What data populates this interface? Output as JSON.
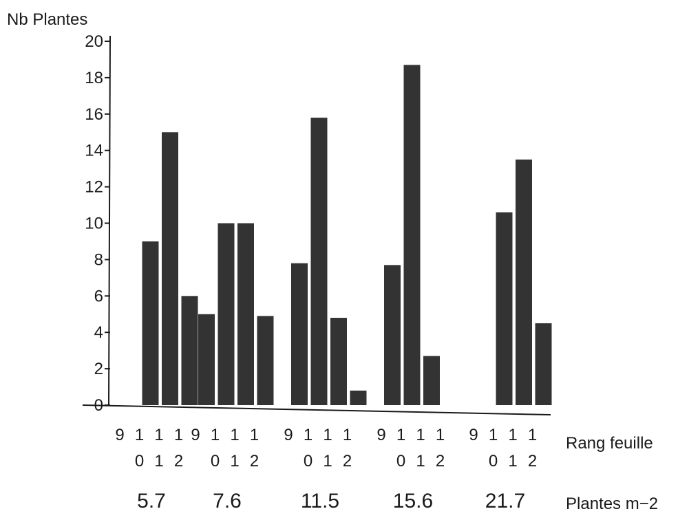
{
  "chart_data": {
    "type": "bar",
    "ylabel": "Nb Plantes",
    "ylim": [
      0,
      20
    ],
    "yticks": [
      0,
      2,
      4,
      6,
      8,
      10,
      12,
      14,
      16,
      18,
      20
    ],
    "x_category_title": "Rang feuille",
    "x_group_title": "Plantes m−2",
    "bar_color": "#333333",
    "categories": [
      "9",
      "10",
      "11",
      "12"
    ],
    "category_tick_lines": [
      [
        "9",
        ""
      ],
      [
        "1",
        "0"
      ],
      [
        "1",
        "1"
      ],
      [
        "1",
        "2"
      ]
    ],
    "groups": [
      {
        "label": "5.7",
        "values": [
          0,
          9,
          15,
          6
        ]
      },
      {
        "label": "7.6",
        "values": [
          5,
          10,
          10,
          4.9
        ]
      },
      {
        "label": "11.5",
        "values": [
          7.8,
          15.8,
          4.8,
          0.8
        ]
      },
      {
        "label": "15.6",
        "values": [
          7.7,
          18.7,
          2.7,
          0
        ]
      },
      {
        "label": "21.7",
        "values": [
          0,
          10.6,
          13.5,
          4.5
        ]
      }
    ]
  }
}
